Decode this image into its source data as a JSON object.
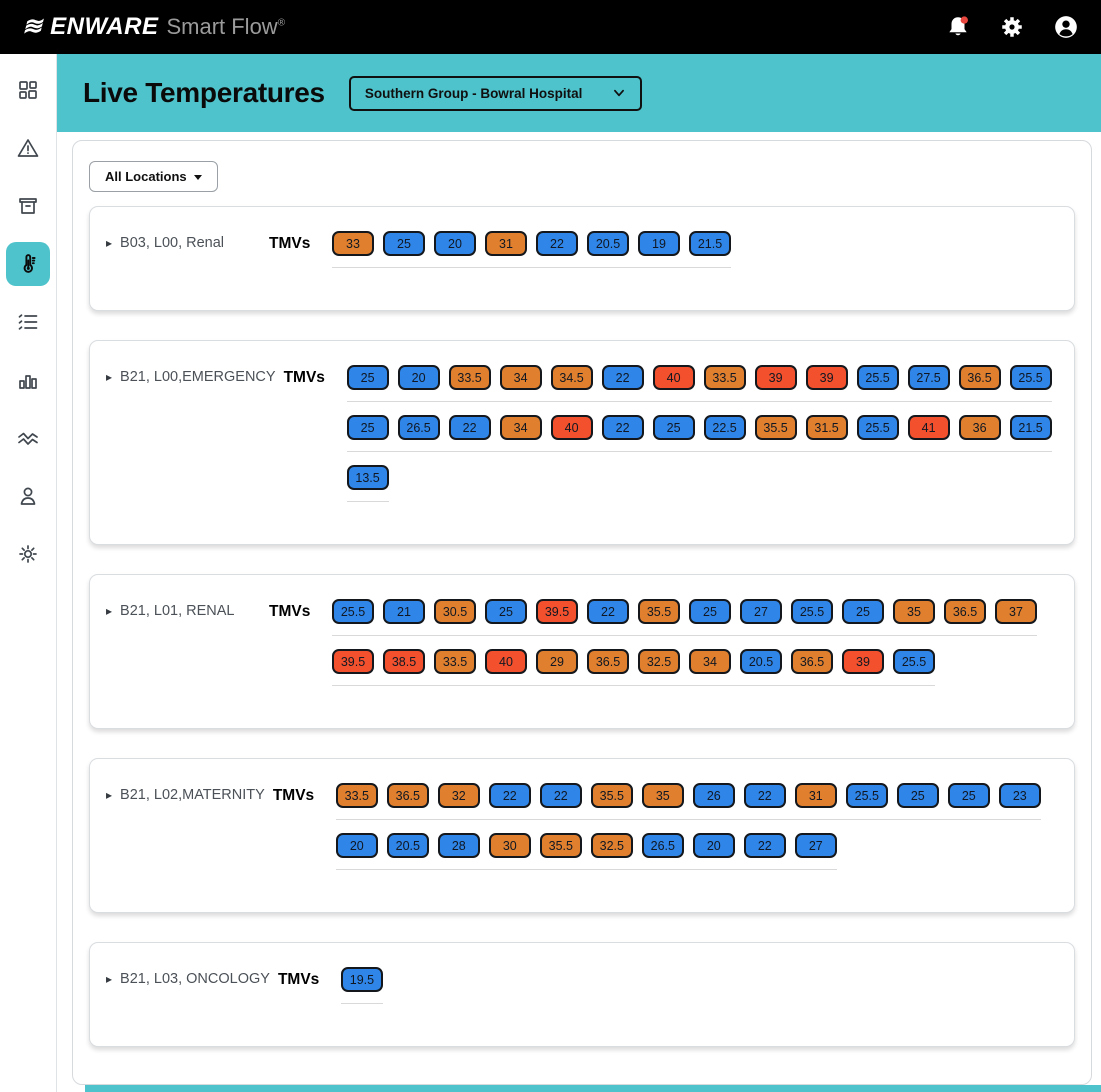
{
  "colors": {
    "teal": "#4EC3CB",
    "chip_blue": "#2F86E8",
    "chip_orange": "#E0802F",
    "chip_red": "#F3512D",
    "badge_red": "#E8473F"
  },
  "header": {
    "brand": "ENWARE",
    "brand_suffix": "Smart Flow",
    "registered": "®",
    "icons": [
      "bell-icon",
      "gear-icon",
      "user-icon"
    ]
  },
  "banner": {
    "title": "Live Temperatures",
    "site_dropdown": "Southern Group - Bowral Hospital"
  },
  "sidebar": {
    "items": [
      {
        "name": "dashboard",
        "icon": "dashboard-icon",
        "active": false
      },
      {
        "name": "alerts",
        "icon": "alert-triangle-icon",
        "active": false
      },
      {
        "name": "archive",
        "icon": "archive-icon",
        "active": false
      },
      {
        "name": "live-temperatures",
        "icon": "thermometer-icon",
        "active": true
      },
      {
        "name": "tasks",
        "icon": "checklist-icon",
        "active": false
      },
      {
        "name": "reports",
        "icon": "bar-chart-icon",
        "active": false
      },
      {
        "name": "trends",
        "icon": "trend-lines-icon",
        "active": false
      },
      {
        "name": "users",
        "icon": "user-outline-icon",
        "active": false
      },
      {
        "name": "settings",
        "icon": "gear-outline-icon",
        "active": false
      }
    ]
  },
  "filters": {
    "all_locations": "All Locations"
  },
  "labels": {
    "tmvs": "TMVs"
  },
  "groups": [
    {
      "location": "B03, L00, Renal",
      "rows": [
        [
          [
            "33",
            "orange"
          ],
          [
            "25",
            "blue"
          ],
          [
            "20",
            "blue"
          ],
          [
            "31",
            "orange"
          ],
          [
            "22",
            "blue"
          ],
          [
            "20.5",
            "blue"
          ],
          [
            "19",
            "blue"
          ],
          [
            "21.5",
            "blue"
          ]
        ]
      ]
    },
    {
      "location": "B21, L00,EMERGENCY",
      "rows": [
        [
          [
            "25",
            "blue"
          ],
          [
            "20",
            "blue"
          ],
          [
            "33.5",
            "orange"
          ],
          [
            "34",
            "orange"
          ],
          [
            "34.5",
            "orange"
          ],
          [
            "22",
            "blue"
          ],
          [
            "40",
            "red"
          ],
          [
            "33.5",
            "orange"
          ],
          [
            "39",
            "red"
          ],
          [
            "39",
            "red"
          ],
          [
            "25.5",
            "blue"
          ],
          [
            "27.5",
            "blue"
          ],
          [
            "36.5",
            "orange"
          ],
          [
            "25.5",
            "blue"
          ]
        ],
        [
          [
            "25",
            "blue"
          ],
          [
            "26.5",
            "blue"
          ],
          [
            "22",
            "blue"
          ],
          [
            "34",
            "orange"
          ],
          [
            "40",
            "red"
          ],
          [
            "22",
            "blue"
          ],
          [
            "25",
            "blue"
          ],
          [
            "22.5",
            "blue"
          ],
          [
            "35.5",
            "orange"
          ],
          [
            "31.5",
            "orange"
          ],
          [
            "25.5",
            "blue"
          ],
          [
            "41",
            "red"
          ],
          [
            "36",
            "orange"
          ],
          [
            "21.5",
            "blue"
          ]
        ],
        [
          [
            "13.5",
            "blue"
          ]
        ]
      ]
    },
    {
      "location": "B21, L01, RENAL",
      "rows": [
        [
          [
            "25.5",
            "blue"
          ],
          [
            "21",
            "blue"
          ],
          [
            "30.5",
            "orange"
          ],
          [
            "25",
            "blue"
          ],
          [
            "39.5",
            "red"
          ],
          [
            "22",
            "blue"
          ],
          [
            "35.5",
            "orange"
          ],
          [
            "25",
            "blue"
          ],
          [
            "27",
            "blue"
          ],
          [
            "25.5",
            "blue"
          ],
          [
            "25",
            "blue"
          ],
          [
            "35",
            "orange"
          ],
          [
            "36.5",
            "orange"
          ],
          [
            "37",
            "orange"
          ]
        ],
        [
          [
            "39.5",
            "red"
          ],
          [
            "38.5",
            "red"
          ],
          [
            "33.5",
            "orange"
          ],
          [
            "40",
            "red"
          ],
          [
            "29",
            "orange"
          ],
          [
            "36.5",
            "orange"
          ],
          [
            "32.5",
            "orange"
          ],
          [
            "34",
            "orange"
          ],
          [
            "20.5",
            "blue"
          ],
          [
            "36.5",
            "orange"
          ],
          [
            "39",
            "red"
          ],
          [
            "25.5",
            "blue"
          ]
        ]
      ]
    },
    {
      "location": "B21, L02,MATERNITY",
      "rows": [
        [
          [
            "33.5",
            "orange"
          ],
          [
            "36.5",
            "orange"
          ],
          [
            "32",
            "orange"
          ],
          [
            "22",
            "blue"
          ],
          [
            "22",
            "blue"
          ],
          [
            "35.5",
            "orange"
          ],
          [
            "35",
            "orange"
          ],
          [
            "26",
            "blue"
          ],
          [
            "22",
            "blue"
          ],
          [
            "31",
            "orange"
          ],
          [
            "25.5",
            "blue"
          ],
          [
            "25",
            "blue"
          ],
          [
            "25",
            "blue"
          ],
          [
            "23",
            "blue"
          ]
        ],
        [
          [
            "20",
            "blue"
          ],
          [
            "20.5",
            "blue"
          ],
          [
            "28",
            "blue"
          ],
          [
            "30",
            "orange"
          ],
          [
            "35.5",
            "orange"
          ],
          [
            "32.5",
            "orange"
          ],
          [
            "26.5",
            "blue"
          ],
          [
            "20",
            "blue"
          ],
          [
            "22",
            "blue"
          ],
          [
            "27",
            "blue"
          ]
        ]
      ]
    },
    {
      "location": "B21, L03, ONCOLOGY",
      "rows": [
        [
          [
            "19.5",
            "blue"
          ]
        ]
      ]
    }
  ]
}
